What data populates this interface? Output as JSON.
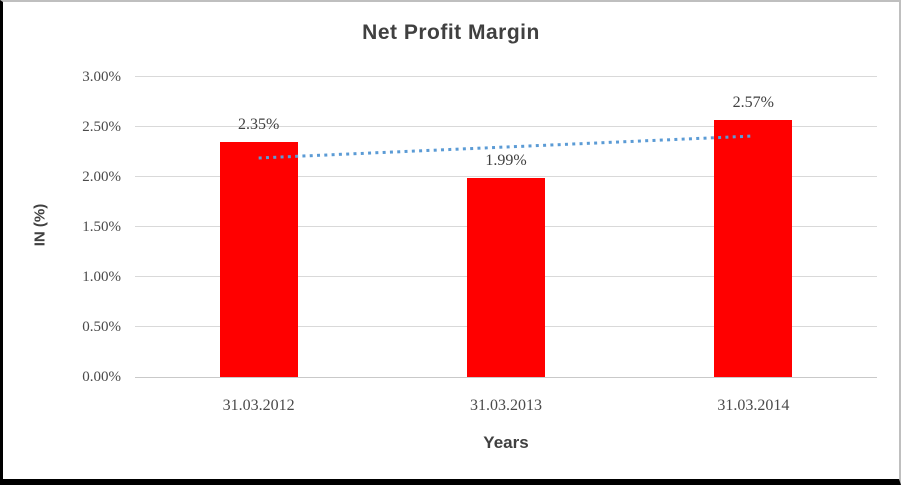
{
  "chart_data": {
    "type": "bar",
    "title": "Net Profit Margin",
    "xlabel": "Years",
    "ylabel": "IN (%)",
    "categories": [
      "31.03.2012",
      "31.03.2013",
      "31.03.2014"
    ],
    "values": [
      2.35,
      1.99,
      2.57
    ],
    "data_labels": [
      "2.35%",
      "1.99%",
      "2.57%"
    ],
    "ylim": [
      0,
      3.0
    ],
    "y_tick_labels": [
      "0.00%",
      "0.50%",
      "1.00%",
      "1.50%",
      "2.00%",
      "2.50%",
      "3.00%"
    ],
    "grid": true,
    "legend": "none",
    "bar_color": "#FF0000",
    "trendline": {
      "type": "linear",
      "style": "dotted",
      "color": "#5B9BD5",
      "start_value": 2.19,
      "end_value": 2.41
    },
    "colors": {
      "gridline": "#D9D9D9",
      "axis_line": "#C9C9C9",
      "title_text": "#404040",
      "tick_text": "#4A4A4A"
    }
  }
}
